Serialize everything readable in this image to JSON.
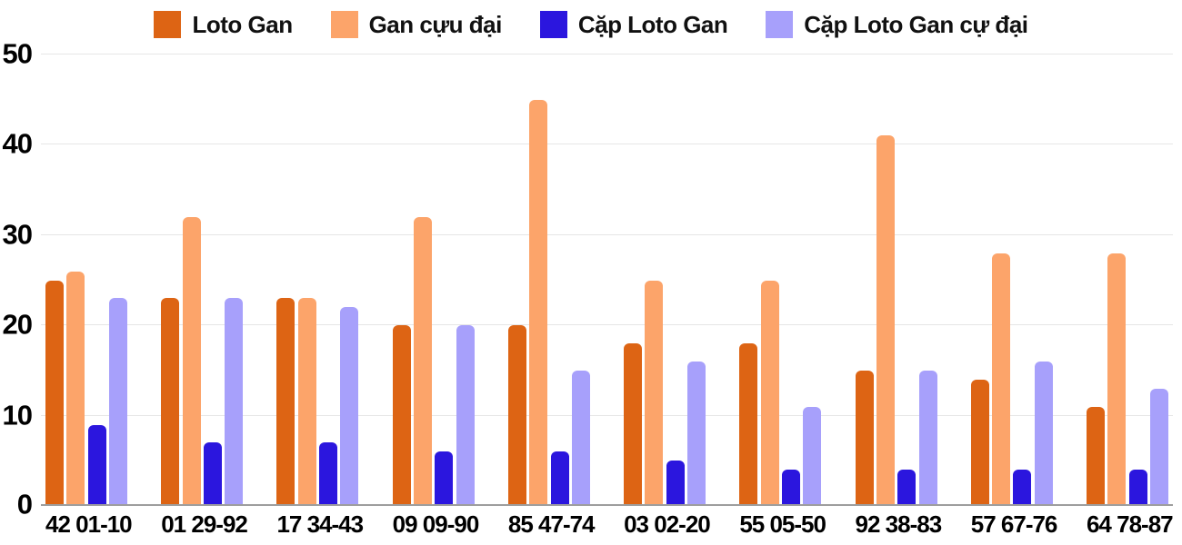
{
  "chart_data": {
    "type": "bar",
    "title": "",
    "xlabel": "",
    "ylabel": "",
    "categories": [
      "42 01-10",
      "01 29-92",
      "17 34-43",
      "09 09-90",
      "85 47-74",
      "03 02-20",
      "55 05-50",
      "92 38-83",
      "57 67-76",
      "64 78-87"
    ],
    "series": [
      {
        "name": "Loto Gan",
        "color": "#dd6414",
        "values": [
          25,
          23,
          23,
          20,
          20,
          18,
          18,
          15,
          14,
          11
        ]
      },
      {
        "name": "Gan cựu đại",
        "color": "#fca46a",
        "values": [
          26,
          32,
          23,
          32,
          45,
          25,
          25,
          41,
          28,
          28
        ]
      },
      {
        "name": "Cặp Loto Gan",
        "color": "#2b16de",
        "values": [
          9,
          7,
          7,
          6,
          6,
          5,
          4,
          4,
          4,
          4
        ]
      },
      {
        "name": "Cặp Loto Gan cự đại",
        "color": "#a7a0fb",
        "values": [
          23,
          23,
          22,
          20,
          15,
          16,
          11,
          15,
          16,
          13
        ]
      }
    ],
    "ylim": [
      0,
      50
    ],
    "yticks": [
      0,
      10,
      20,
      30,
      40,
      50
    ],
    "grid": true,
    "legend_position": "top"
  },
  "colors": {
    "background": "#ffffff",
    "gridline": "#e6e6e6",
    "axis_line": "#9e9e9e",
    "tick_text": "#000000"
  }
}
